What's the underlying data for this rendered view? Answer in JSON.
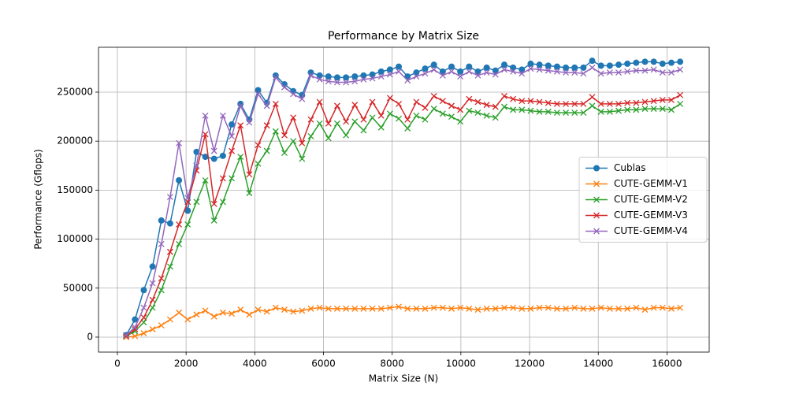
{
  "chart_data": {
    "type": "line",
    "title": "Performance by Matrix Size",
    "x_label": "Matrix Size (N)",
    "y_label": "Performance (Gflops)",
    "x": [
      256,
      512,
      768,
      1024,
      1280,
      1536,
      1792,
      2048,
      2304,
      2560,
      2816,
      3072,
      3328,
      3584,
      3840,
      4096,
      4352,
      4608,
      4864,
      5120,
      5376,
      5632,
      5888,
      6144,
      6400,
      6656,
      6912,
      7168,
      7424,
      7680,
      7936,
      8192,
      8448,
      8704,
      8960,
      9216,
      9472,
      9728,
      9984,
      10240,
      10496,
      10752,
      11008,
      11264,
      11520,
      11776,
      12032,
      12288,
      12544,
      12800,
      13056,
      13312,
      13568,
      13824,
      14080,
      14336,
      14592,
      14848,
      15104,
      15360,
      15616,
      15872,
      16128,
      16384
    ],
    "series": [
      {
        "name": "Cublas",
        "color": "#1f77b4",
        "marker": "o",
        "values": [
          2000,
          18000,
          48000,
          72000,
          119000,
          116000,
          160000,
          129000,
          189000,
          184000,
          182000,
          185000,
          217000,
          238000,
          222000,
          252000,
          239000,
          267000,
          258000,
          251000,
          247000,
          270000,
          267000,
          266000,
          265000,
          265000,
          266000,
          267000,
          268000,
          271000,
          273000,
          276000,
          266000,
          270000,
          274000,
          278000,
          271000,
          276000,
          271000,
          276000,
          271000,
          275000,
          272000,
          278000,
          275000,
          273000,
          279000,
          278000,
          277000,
          276000,
          275000,
          275000,
          275000,
          282000,
          277000,
          277000,
          278000,
          279000,
          280000,
          281000,
          281000,
          279000,
          280000,
          281000
        ]
      },
      {
        "name": "CUTE-GEMM-V1",
        "color": "#ff7f0e",
        "marker": "x",
        "values": [
          0,
          1000,
          4000,
          8000,
          12000,
          18000,
          25000,
          18000,
          23000,
          27000,
          21000,
          25000,
          24000,
          28000,
          23000,
          28000,
          26000,
          30000,
          28000,
          26000,
          27000,
          29000,
          30000,
          29000,
          29000,
          29000,
          29000,
          29000,
          29000,
          29000,
          30000,
          31000,
          29000,
          29000,
          29000,
          30000,
          30000,
          29000,
          30000,
          29000,
          28000,
          29000,
          29000,
          30000,
          30000,
          29000,
          29000,
          30000,
          30000,
          29000,
          29000,
          30000,
          29000,
          29000,
          30000,
          29000,
          29000,
          29000,
          30000,
          28000,
          30000,
          30000,
          29000,
          30000
        ]
      },
      {
        "name": "CUTE-GEMM-V2",
        "color": "#2ca02c",
        "marker": "x",
        "values": [
          1000,
          6000,
          15000,
          30000,
          48000,
          72000,
          95000,
          115000,
          138000,
          160000,
          119000,
          138000,
          162000,
          184000,
          147000,
          177000,
          190000,
          210000,
          188000,
          200000,
          182000,
          205000,
          218000,
          203000,
          218000,
          206000,
          220000,
          211000,
          224000,
          214000,
          228000,
          223000,
          213000,
          226000,
          222000,
          233000,
          228000,
          225000,
          220000,
          231000,
          229000,
          226000,
          224000,
          235000,
          232000,
          232000,
          231000,
          230000,
          230000,
          229000,
          229000,
          229000,
          229000,
          236000,
          230000,
          230000,
          231000,
          232000,
          232000,
          233000,
          233000,
          233000,
          232000,
          238000
        ]
      },
      {
        "name": "CUTE-GEMM-V3",
        "color": "#d62728",
        "marker": "x",
        "values": [
          1000,
          8000,
          20000,
          38000,
          60000,
          87000,
          115000,
          138000,
          170000,
          207000,
          136000,
          162000,
          190000,
          216000,
          166000,
          196000,
          216000,
          238000,
          206000,
          224000,
          198000,
          222000,
          240000,
          218000,
          236000,
          220000,
          237000,
          222000,
          240000,
          226000,
          244000,
          238000,
          222000,
          240000,
          234000,
          246000,
          241000,
          236000,
          232000,
          243000,
          240000,
          237000,
          235000,
          246000,
          243000,
          241000,
          241000,
          240000,
          239000,
          238000,
          238000,
          238000,
          238000,
          245000,
          238000,
          238000,
          238000,
          239000,
          239000,
          240000,
          241000,
          242000,
          242000,
          247000
        ]
      },
      {
        "name": "CUTE-GEMM-V4",
        "color": "#9467bd",
        "marker": "x",
        "values": [
          2000,
          10000,
          30000,
          55000,
          95000,
          143000,
          198000,
          142000,
          175000,
          226000,
          190000,
          226000,
          205000,
          236000,
          219000,
          248000,
          236000,
          265000,
          255000,
          248000,
          243000,
          267000,
          263000,
          261000,
          260000,
          260000,
          261000,
          263000,
          264000,
          266000,
          268000,
          271000,
          262000,
          266000,
          269000,
          273000,
          267000,
          271000,
          266000,
          271000,
          267000,
          270000,
          268000,
          273000,
          271000,
          269000,
          274000,
          273000,
          272000,
          271000,
          270000,
          270000,
          269000,
          275000,
          269000,
          270000,
          270000,
          271000,
          272000,
          272000,
          273000,
          270000,
          270000,
          273000
        ]
      }
    ],
    "xlim": [
      -550,
      17230
    ],
    "ylim": [
      -15300,
      295800
    ],
    "xticks": [
      0,
      2000,
      4000,
      6000,
      8000,
      10000,
      12000,
      14000,
      16000
    ],
    "yticks": [
      0,
      50000,
      100000,
      150000,
      200000,
      250000
    ],
    "grid": true,
    "legend": "center right"
  }
}
